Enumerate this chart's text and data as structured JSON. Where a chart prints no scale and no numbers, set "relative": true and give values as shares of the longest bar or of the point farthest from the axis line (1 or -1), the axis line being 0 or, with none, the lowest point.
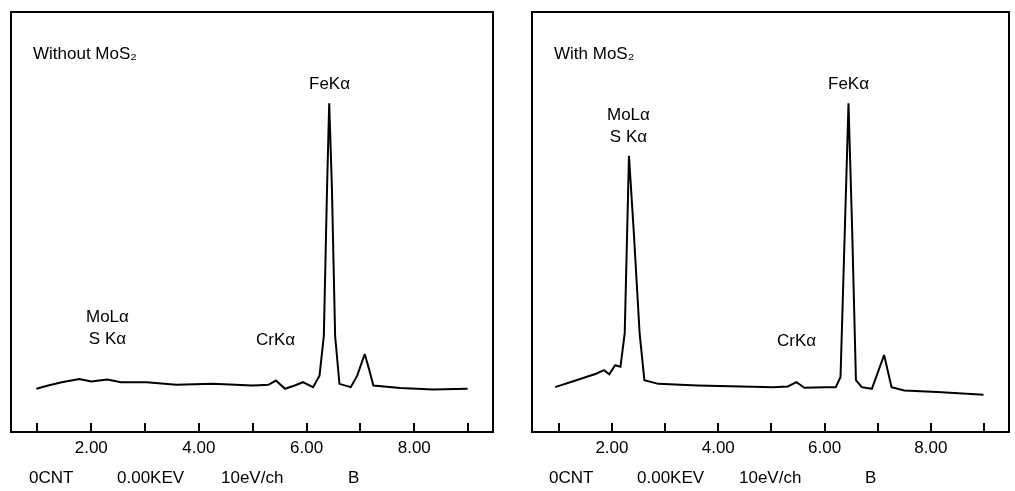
{
  "chart_data": [
    {
      "type": "line",
      "title": "Without MoS₂",
      "relative": true,
      "xlim": [
        0.53,
        9.45
      ],
      "xticks": [
        {
          "value": 1,
          "label": null
        },
        {
          "value": 2,
          "label": "2.00"
        },
        {
          "value": 3,
          "label": null
        },
        {
          "value": 4,
          "label": "4.00"
        },
        {
          "value": 5,
          "label": null
        },
        {
          "value": 6,
          "label": "6.00"
        },
        {
          "value": 7,
          "label": null
        },
        {
          "value": 8,
          "label": "8.00"
        },
        {
          "value": 9,
          "label": null
        }
      ],
      "series": [
        {
          "color": "#000000",
          "x": [
            0.98,
            1.2,
            1.45,
            1.78,
            2.0,
            2.3,
            2.55,
            3.03,
            3.58,
            4.25,
            4.99,
            5.29,
            5.43,
            5.6,
            5.78,
            5.93,
            6.12,
            6.24,
            6.32,
            6.38,
            6.42,
            6.47,
            6.53,
            6.61,
            6.82,
            6.94,
            7.08,
            7.16,
            7.24,
            7.74,
            8.35,
            8.99
          ],
          "values": [
            0.129,
            0.139,
            0.149,
            0.159,
            0.151,
            0.157,
            0.149,
            0.149,
            0.141,
            0.144,
            0.139,
            0.141,
            0.154,
            0.129,
            0.139,
            0.149,
            0.134,
            0.169,
            0.29,
            0.743,
            1.0,
            0.743,
            0.29,
            0.144,
            0.134,
            0.169,
            0.235,
            0.189,
            0.139,
            0.131,
            0.127,
            0.129
          ]
        }
      ],
      "annotations": [
        {
          "text": "FeKα",
          "x": 6.42,
          "y": 1.0
        },
        {
          "text": "MoLα\nS Kα",
          "x": 2.3,
          "y": 0.157
        },
        {
          "text": "CrKα",
          "x": 5.43,
          "y": 0.154
        },
        "0CNT",
        "0.00KEV",
        "10eV/ch",
        "B"
      ],
      "marker": "none",
      "line_style": "solid"
    },
    {
      "type": "line",
      "title": "With MoS₂",
      "relative": true,
      "xlim": [
        0.51,
        9.45
      ],
      "xticks": [
        {
          "value": 1,
          "label": null
        },
        {
          "value": 2,
          "label": "2.00"
        },
        {
          "value": 3,
          "label": null
        },
        {
          "value": 4,
          "label": "4.00"
        },
        {
          "value": 5,
          "label": null
        },
        {
          "value": 6,
          "label": "6.00"
        },
        {
          "value": 7,
          "label": null
        },
        {
          "value": 8,
          "label": "8.00"
        },
        {
          "value": 9,
          "label": null
        }
      ],
      "series": [
        {
          "color": "#000000",
          "x": [
            0.93,
            1.33,
            1.7,
            1.85,
            1.95,
            2.06,
            2.16,
            2.24,
            2.32,
            2.41,
            2.52,
            2.61,
            2.87,
            3.61,
            4.42,
            5.03,
            5.31,
            5.47,
            5.62,
            6.02,
            6.21,
            6.3,
            6.38,
            6.45,
            6.52,
            6.59,
            6.7,
            6.89,
            7.12,
            7.26,
            7.5,
            8.12,
            8.99
          ],
          "values": [
            0.134,
            0.155,
            0.175,
            0.186,
            0.173,
            0.201,
            0.196,
            0.299,
            0.84,
            0.608,
            0.299,
            0.155,
            0.144,
            0.139,
            0.136,
            0.134,
            0.136,
            0.149,
            0.132,
            0.134,
            0.134,
            0.165,
            0.608,
            1.0,
            0.608,
            0.155,
            0.134,
            0.129,
            0.232,
            0.134,
            0.124,
            0.119,
            0.111
          ]
        }
      ],
      "annotations": [
        {
          "text": "FeKα",
          "x": 6.45,
          "y": 1.0
        },
        {
          "text": "MoLα\nS Kα",
          "x": 2.32,
          "y": 0.84
        },
        {
          "text": "CrKα",
          "x": 5.47,
          "y": 0.149
        },
        "0CNT",
        "0.00KEV",
        "10eV/ch",
        "B"
      ],
      "marker": "none",
      "line_style": "solid"
    }
  ]
}
